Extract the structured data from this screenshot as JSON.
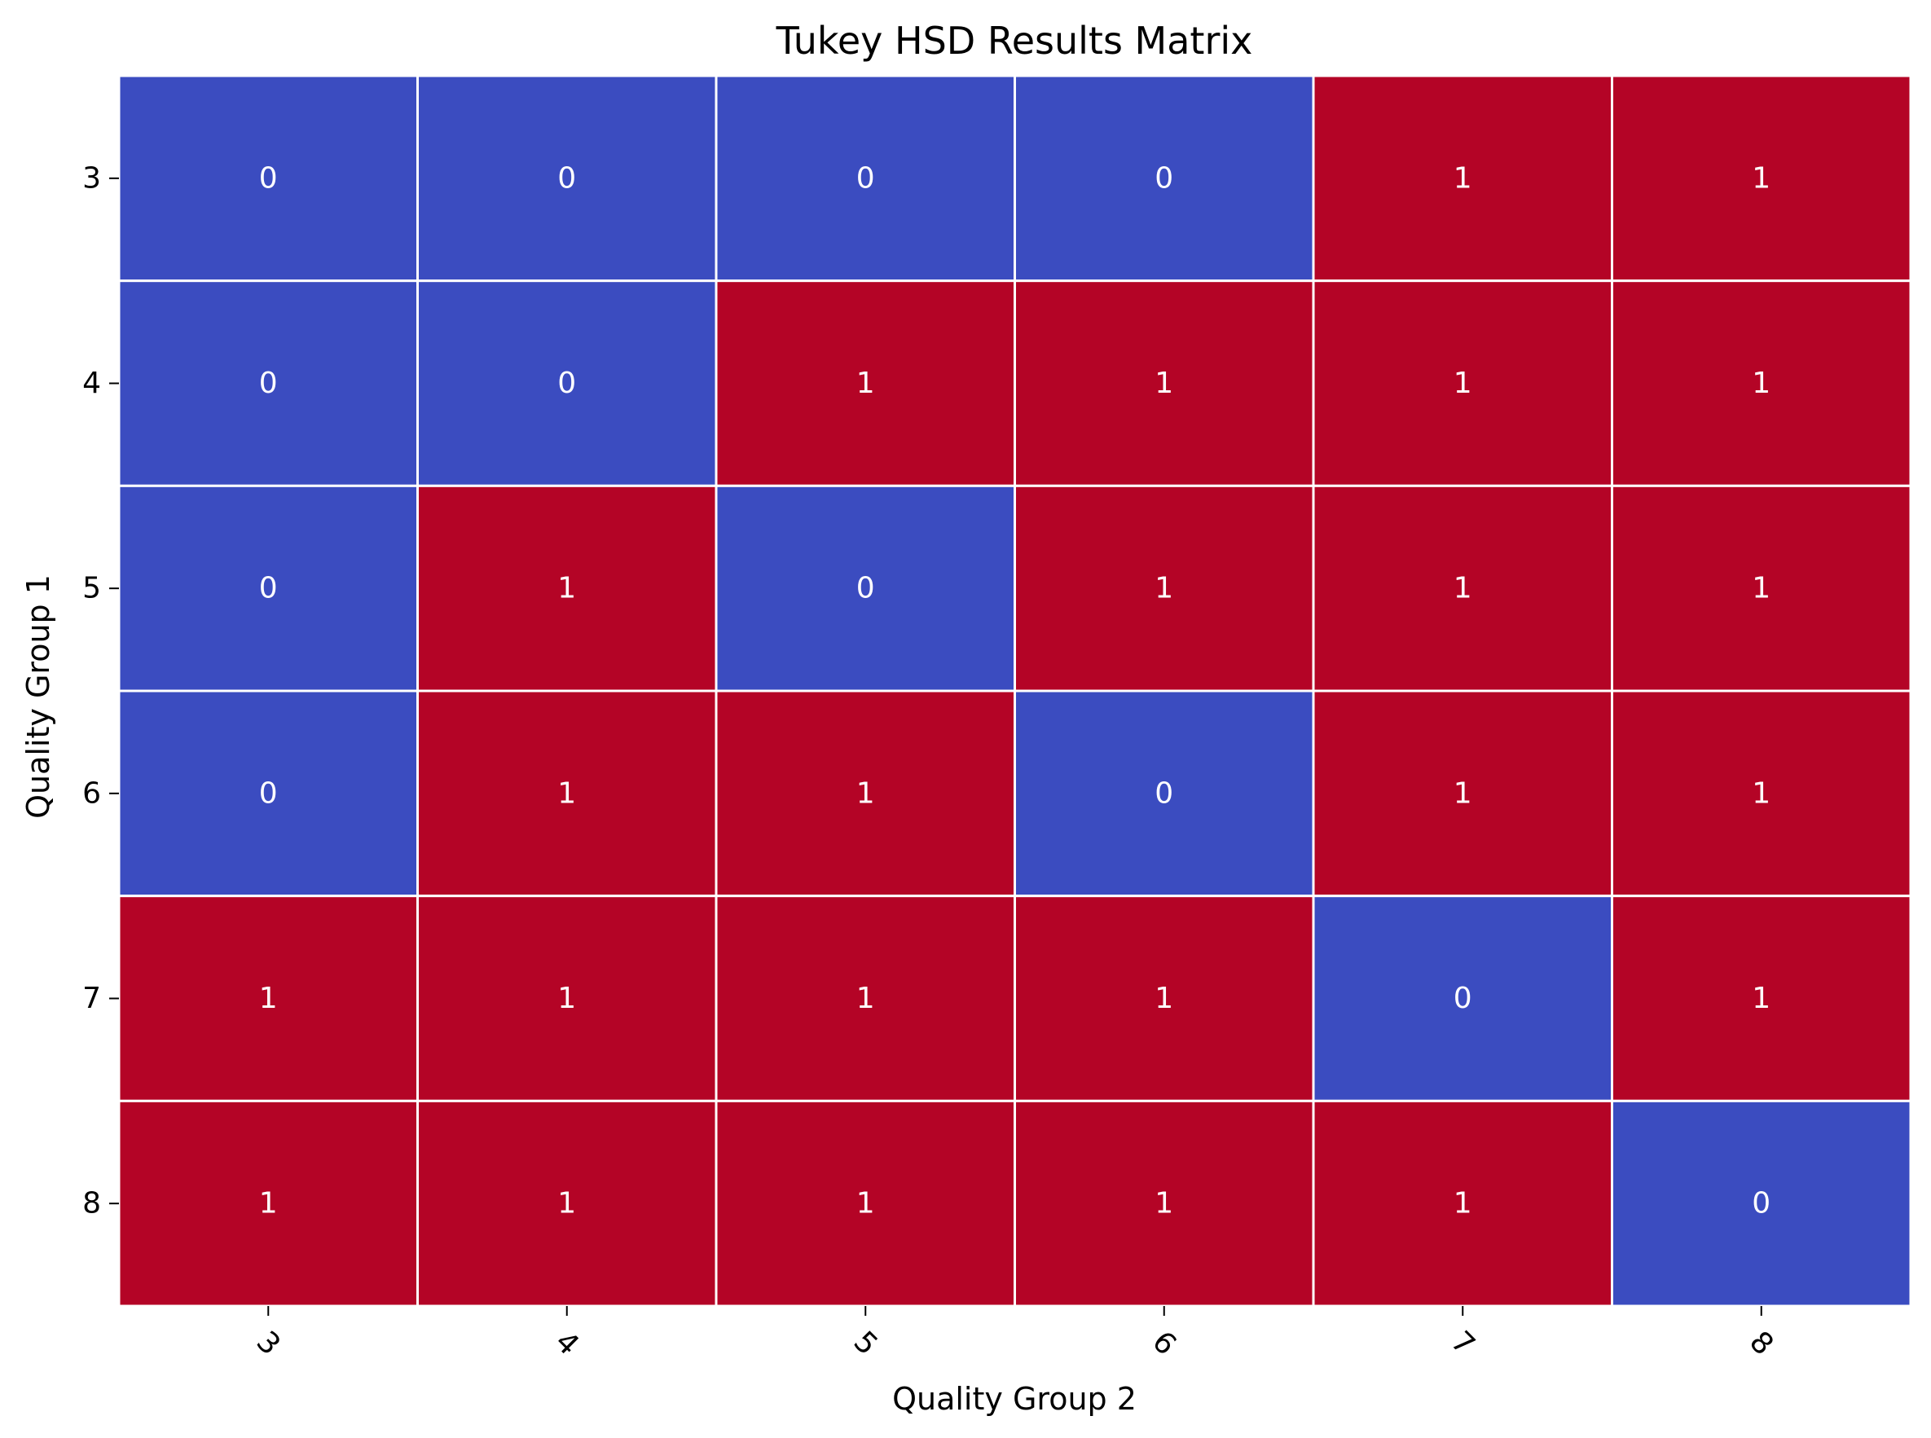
{
  "chart_data": {
    "type": "heatmap",
    "title": "Tukey HSD Results Matrix",
    "xlabel": "Quality Group 2",
    "ylabel": "Quality Group 1",
    "x_categories": [
      "3",
      "4",
      "5",
      "6",
      "7",
      "8"
    ],
    "y_categories": [
      "3",
      "4",
      "5",
      "6",
      "7",
      "8"
    ],
    "values": [
      [
        0,
        0,
        0,
        0,
        1,
        1
      ],
      [
        0,
        0,
        1,
        1,
        1,
        1
      ],
      [
        0,
        1,
        0,
        1,
        1,
        1
      ],
      [
        0,
        1,
        1,
        0,
        1,
        1
      ],
      [
        1,
        1,
        1,
        1,
        0,
        1
      ],
      [
        1,
        1,
        1,
        1,
        1,
        0
      ]
    ],
    "colors": {
      "0": "#3b4cc0",
      "1": "#b40426",
      "grid": "#ffffff",
      "cell_text": "#ffffff"
    },
    "colorbar": false,
    "x_tick_rotation": 45
  }
}
